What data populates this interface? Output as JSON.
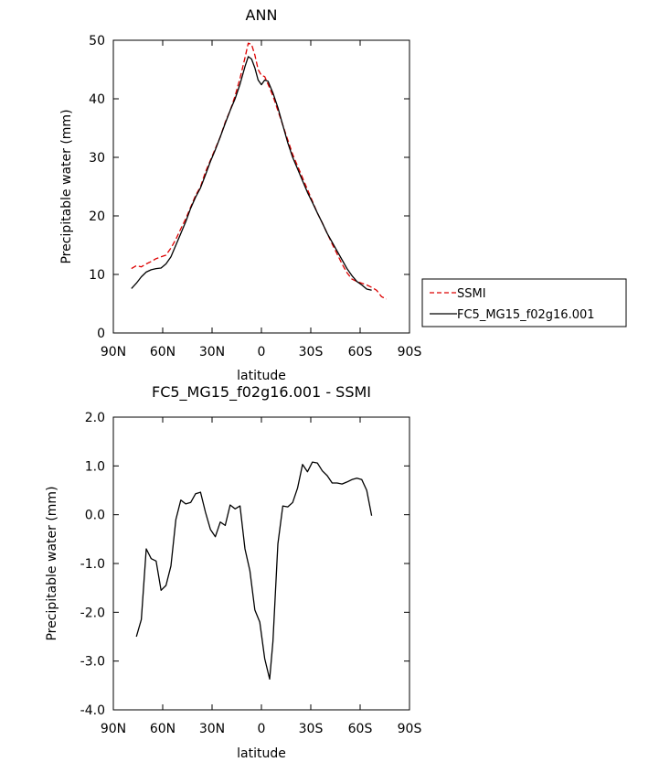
{
  "chart_data": [
    {
      "type": "line",
      "title": "ANN",
      "xlabel": "latitude",
      "ylabel": "Precipitable water (mm)",
      "xlim": [
        -90,
        90
      ],
      "ylim": [
        0,
        50
      ],
      "x_ticks": [
        -90,
        -60,
        -30,
        0,
        30,
        60,
        90
      ],
      "x_tick_labels": [
        "90N",
        "60N",
        "30N",
        "0",
        "30S",
        "60S",
        "90S"
      ],
      "y_ticks": [
        0,
        10,
        20,
        30,
        40,
        50
      ],
      "y_tick_labels": [
        "0",
        "10",
        "20",
        "30",
        "40",
        "50"
      ],
      "legend_position": "right",
      "series": [
        {
          "name": "SSMI",
          "color": "#dd0000",
          "dash": "dashed",
          "x": [
            -79,
            -76,
            -73,
            -70,
            -67,
            -64,
            -61,
            -58,
            -55,
            -52,
            -49,
            -46,
            -43,
            -40,
            -37,
            -34,
            -31,
            -28,
            -25,
            -22,
            -19,
            -16,
            -13,
            -10,
            -8,
            -6,
            -4,
            -2,
            0,
            2,
            4,
            7,
            10,
            13,
            16,
            19,
            22,
            25,
            28,
            31,
            34,
            37,
            40,
            43,
            46,
            49,
            52,
            55,
            58,
            61,
            64,
            67,
            70,
            73,
            76
          ],
          "y": [
            11.0,
            11.5,
            11.3,
            11.8,
            12.2,
            12.7,
            13.0,
            13.3,
            14.5,
            16.0,
            17.8,
            19.5,
            21.5,
            23.5,
            25.0,
            27.5,
            29.5,
            31.5,
            33.5,
            36.0,
            38.0,
            40.5,
            43.5,
            47.0,
            49.5,
            49.3,
            47.5,
            45.0,
            44.0,
            43.8,
            42.5,
            40.5,
            38.0,
            35.5,
            33.0,
            30.5,
            28.5,
            26.5,
            24.5,
            22.5,
            20.5,
            18.8,
            17.0,
            15.2,
            13.5,
            11.8,
            10.3,
            9.2,
            8.8,
            8.5,
            8.2,
            7.8,
            7.3,
            6.2,
            5.8
          ]
        },
        {
          "name": "FC5_MG15_f02g16.001",
          "color": "#000000",
          "dash": "solid",
          "x": [
            -79,
            -76,
            -73,
            -70,
            -67,
            -64,
            -61,
            -58,
            -55,
            -52,
            -49,
            -46,
            -43,
            -40,
            -37,
            -34,
            -31,
            -28,
            -25,
            -22,
            -19,
            -16,
            -13,
            -10,
            -8,
            -6,
            -4,
            -2,
            0,
            2,
            4,
            7,
            10,
            13,
            16,
            19,
            22,
            25,
            28,
            31,
            34,
            37,
            40,
            43,
            46,
            49,
            52,
            55,
            58,
            61,
            64,
            67
          ],
          "y": [
            7.6,
            8.5,
            9.6,
            10.4,
            10.8,
            11.0,
            11.1,
            11.8,
            13.0,
            15.0,
            17.0,
            19.0,
            21.3,
            23.2,
            24.8,
            27.0,
            29.3,
            31.3,
            33.5,
            35.8,
            38.0,
            40.0,
            42.5,
            45.5,
            47.2,
            46.8,
            45.3,
            43.2,
            42.4,
            43.2,
            43.0,
            41.0,
            38.5,
            35.5,
            32.5,
            30.0,
            28.0,
            26.0,
            24.0,
            22.3,
            20.5,
            18.8,
            17.0,
            15.5,
            14.0,
            12.5,
            11.0,
            9.8,
            8.8,
            8.2,
            7.5,
            7.3
          ]
        }
      ]
    },
    {
      "type": "line",
      "title": "FC5_MG15_f02g16.001 - SSMI",
      "xlabel": "latitude",
      "ylabel": "Precipitable water (mm)",
      "xlim": [
        -90,
        90
      ],
      "ylim": [
        -4,
        2
      ],
      "x_ticks": [
        -90,
        -60,
        -30,
        0,
        30,
        60,
        90
      ],
      "x_tick_labels": [
        "90N",
        "60N",
        "30N",
        "0",
        "30S",
        "60S",
        "90S"
      ],
      "y_ticks": [
        -4,
        -3,
        -2,
        -1,
        0,
        1,
        2
      ],
      "y_tick_labels": [
        "-4.0",
        "-3.0",
        "-2.0",
        "-1.0",
        "0.0",
        "1.0",
        "2.0"
      ],
      "series": [
        {
          "color": "#000000",
          "dash": "solid",
          "x": [
            -76,
            -73,
            -70,
            -67,
            -64,
            -61,
            -58,
            -55,
            -52,
            -49,
            -46,
            -43,
            -40,
            -37,
            -34,
            -31,
            -28,
            -25,
            -22,
            -19,
            -16,
            -13,
            -10,
            -7,
            -4,
            -1,
            2,
            5,
            7,
            10,
            13,
            16,
            19,
            22,
            25,
            28,
            31,
            34,
            37,
            40,
            43,
            46,
            49,
            52,
            55,
            58,
            61,
            64,
            67
          ],
          "y": [
            -2.5,
            -2.15,
            -0.7,
            -0.9,
            -0.95,
            -1.55,
            -1.45,
            -1.05,
            -0.1,
            0.3,
            0.22,
            0.25,
            0.43,
            0.46,
            0.05,
            -0.3,
            -0.45,
            -0.15,
            -0.22,
            0.2,
            0.12,
            0.18,
            -0.7,
            -1.15,
            -1.95,
            -2.2,
            -2.95,
            -3.37,
            -2.6,
            -0.6,
            0.18,
            0.16,
            0.25,
            0.55,
            1.03,
            0.88,
            1.08,
            1.06,
            0.9,
            0.8,
            0.65,
            0.65,
            0.63,
            0.67,
            0.72,
            0.75,
            0.72,
            0.5,
            -0.02
          ]
        }
      ]
    }
  ]
}
